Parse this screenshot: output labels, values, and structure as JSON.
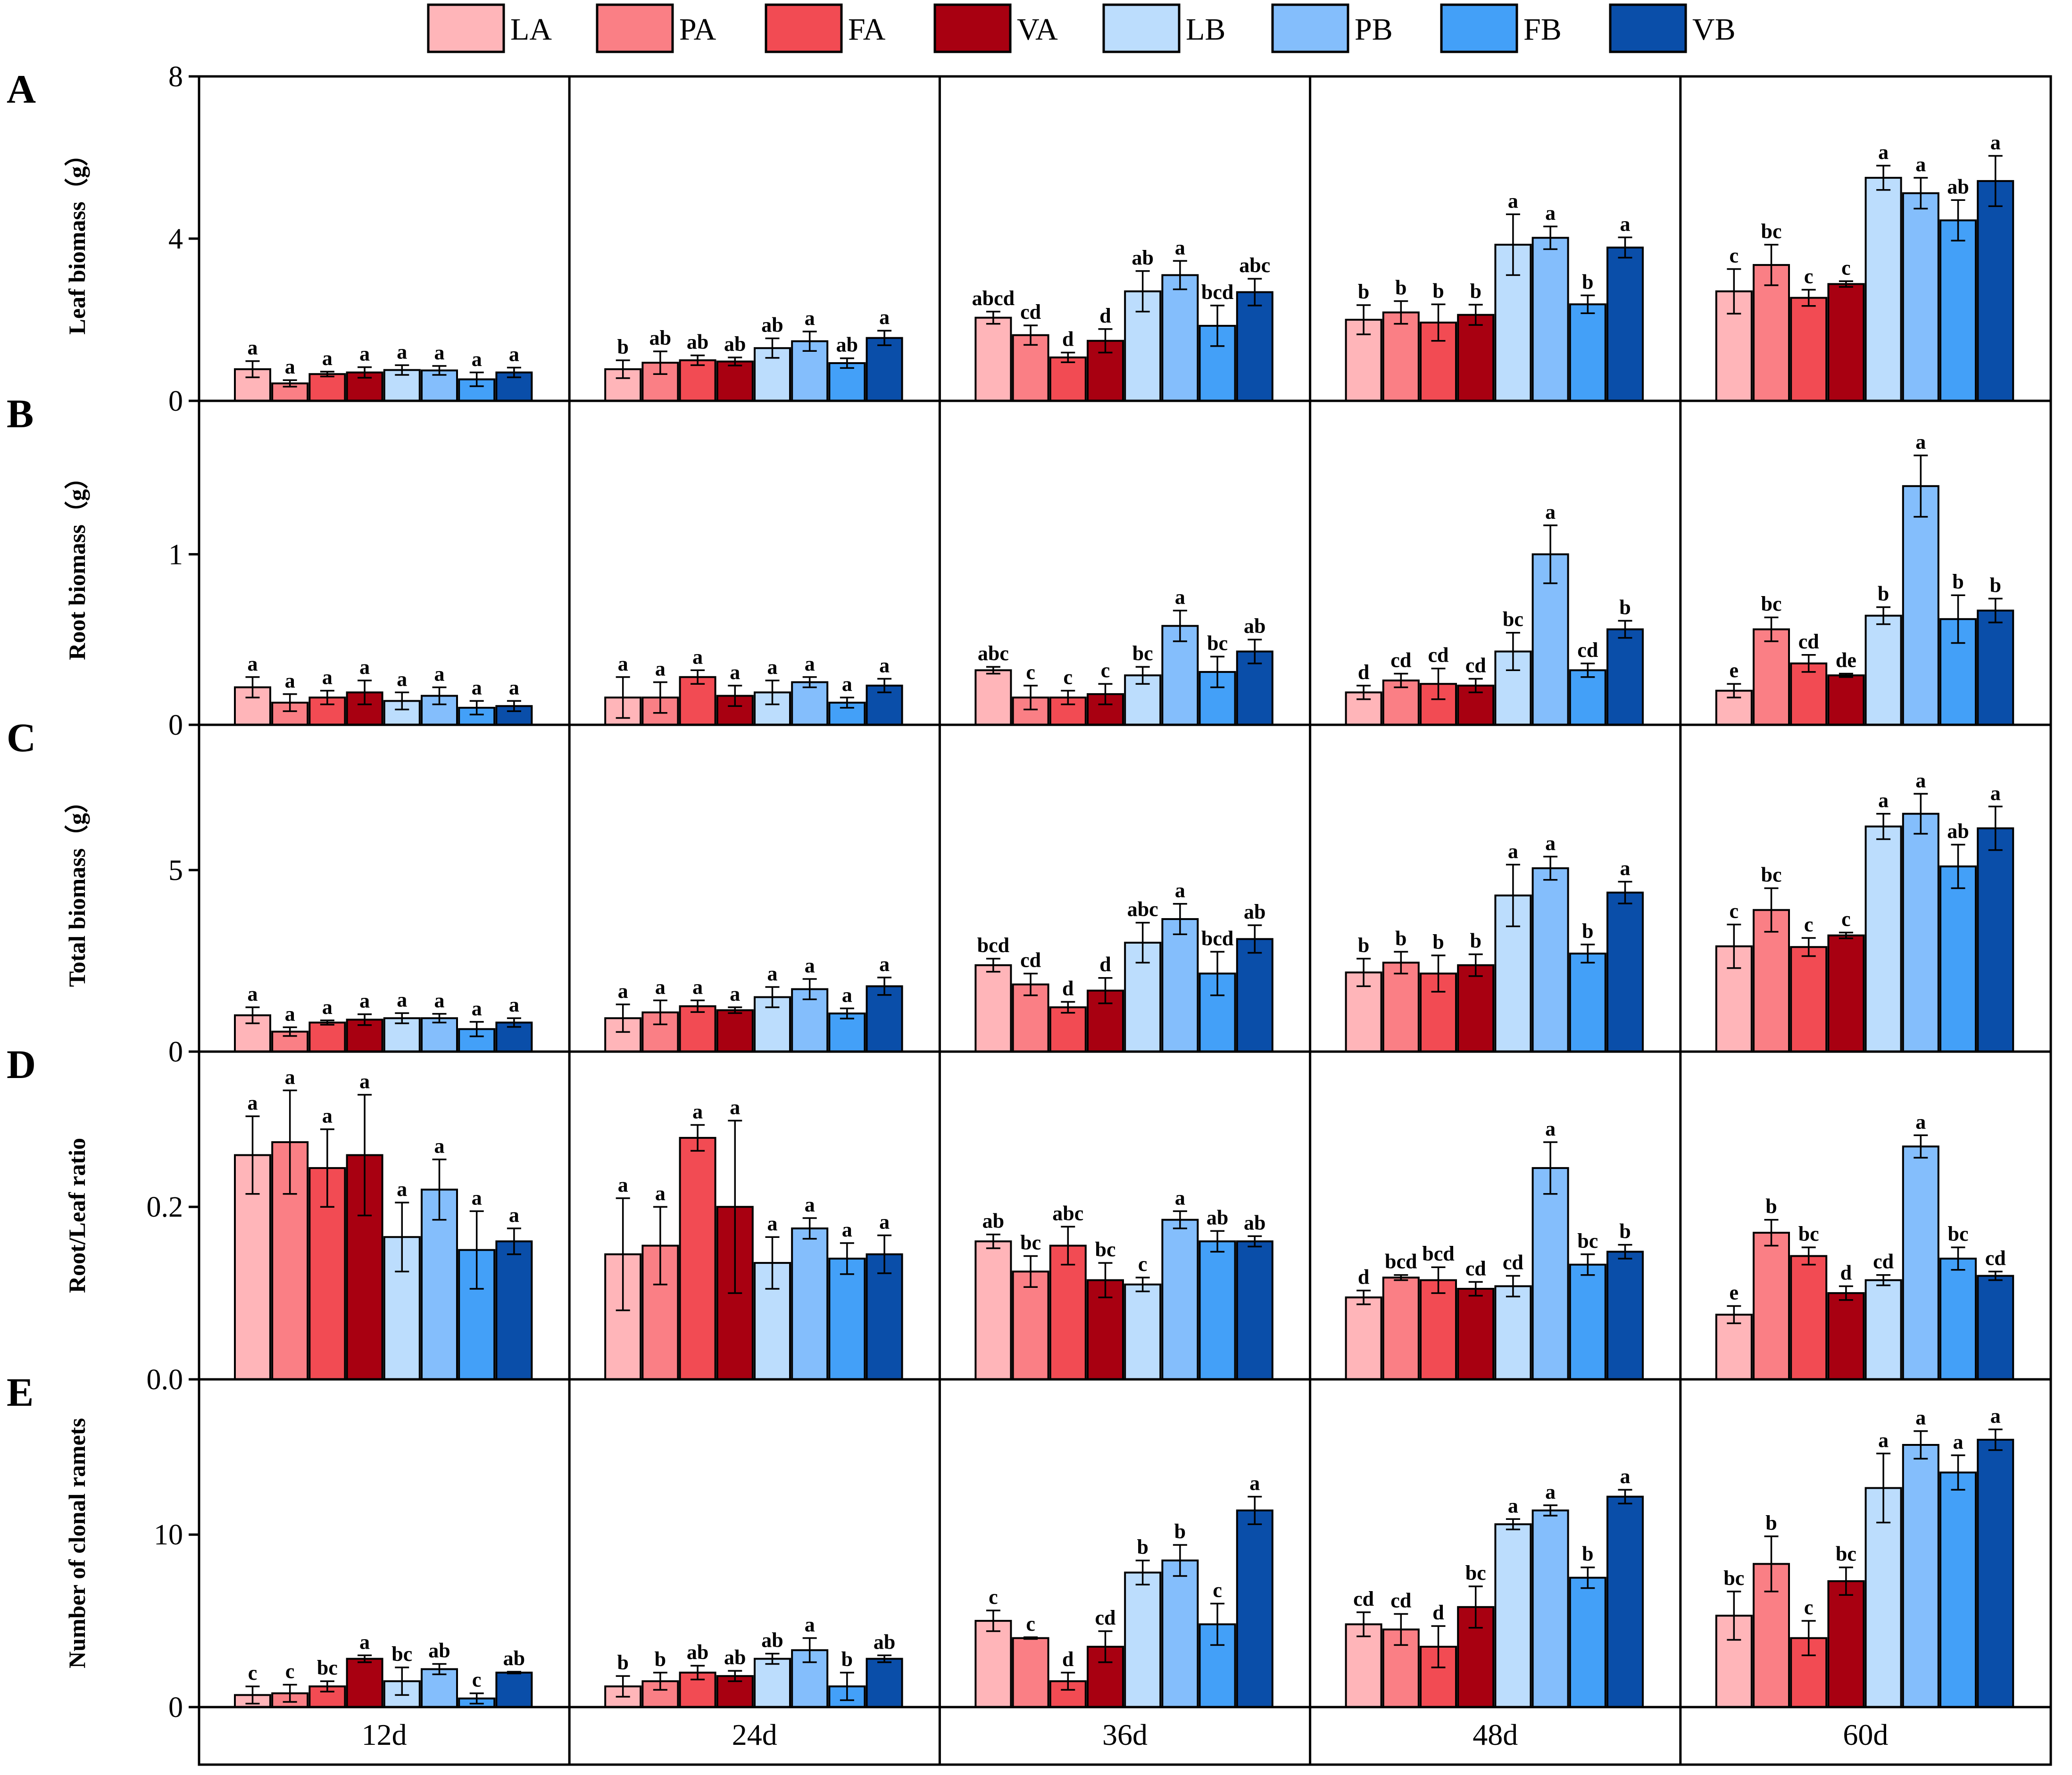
{
  "chart_data": {
    "type": "bar",
    "legend": [
      "LA",
      "PA",
      "FA",
      "VA",
      "LB",
      "PB",
      "FB",
      "VB"
    ],
    "legend_position": "top",
    "colors": {
      "LA": "#ffb5b9",
      "PA": "#fa7f85",
      "FA": "#f24b53",
      "VA": "#a80011",
      "LB": "#bcddfd",
      "PB": "#84befc",
      "FB": "#43a0f8",
      "VB": "#0a4ea9"
    },
    "groups": [
      "12d",
      "24d",
      "36d",
      "48d",
      "60d"
    ],
    "panels": [
      {
        "id": "A",
        "ylabel": "Leaf biomass（g）",
        "ylim": [
          0,
          8
        ],
        "yticks": [
          0,
          4,
          8
        ],
        "tick_labels": [
          "0",
          "4",
          "8"
        ],
        "values": [
          [
            0.78,
            0.43,
            0.66,
            0.7,
            0.76,
            0.75,
            0.53,
            0.7
          ],
          [
            0.78,
            0.94,
            1.0,
            0.97,
            1.3,
            1.47,
            0.93,
            1.55
          ],
          [
            2.05,
            1.62,
            1.07,
            1.48,
            2.7,
            3.1,
            1.85,
            2.68
          ],
          [
            2.0,
            2.18,
            1.93,
            2.12,
            3.85,
            4.02,
            2.38,
            3.78
          ],
          [
            2.7,
            3.35,
            2.54,
            2.88,
            5.5,
            5.12,
            4.45,
            5.42
          ]
        ],
        "errors": [
          [
            0.2,
            0.08,
            0.06,
            0.13,
            0.12,
            0.11,
            0.17,
            0.12
          ],
          [
            0.22,
            0.28,
            0.12,
            0.1,
            0.24,
            0.24,
            0.12,
            0.18
          ],
          [
            0.15,
            0.24,
            0.12,
            0.29,
            0.5,
            0.35,
            0.5,
            0.33
          ],
          [
            0.36,
            0.28,
            0.45,
            0.25,
            0.75,
            0.28,
            0.22,
            0.25
          ],
          [
            0.55,
            0.5,
            0.2,
            0.07,
            0.3,
            0.38,
            0.5,
            0.62
          ]
        ],
        "labels": [
          [
            "a",
            "a",
            "a",
            "a",
            "a",
            "a",
            "a",
            "a"
          ],
          [
            "b",
            "ab",
            "ab",
            "ab",
            "ab",
            "a",
            "ab",
            "a"
          ],
          [
            "abcd",
            "cd",
            "d",
            "d",
            "ab",
            "a",
            "bcd",
            "abc"
          ],
          [
            "b",
            "b",
            "b",
            "b",
            "a",
            "a",
            "b",
            "a"
          ],
          [
            "c",
            "bc",
            "c",
            "c",
            "a",
            "a",
            "ab",
            "a"
          ]
        ]
      },
      {
        "id": "B",
        "ylabel": "Root biomass（g）",
        "ylim": [
          0,
          1.9
        ],
        "yticks": [
          0,
          1
        ],
        "tick_labels": [
          "0",
          "1"
        ],
        "values": [
          [
            0.22,
            0.13,
            0.16,
            0.19,
            0.14,
            0.17,
            0.1,
            0.11
          ],
          [
            0.16,
            0.16,
            0.28,
            0.17,
            0.19,
            0.25,
            0.13,
            0.23
          ],
          [
            0.32,
            0.16,
            0.16,
            0.18,
            0.29,
            0.58,
            0.31,
            0.43
          ],
          [
            0.19,
            0.26,
            0.24,
            0.23,
            0.43,
            1.0,
            0.32,
            0.56
          ],
          [
            0.2,
            0.56,
            0.36,
            0.29,
            0.64,
            1.4,
            0.62,
            0.67
          ]
        ],
        "errors": [
          [
            0.06,
            0.05,
            0.04,
            0.07,
            0.05,
            0.05,
            0.04,
            0.03
          ],
          [
            0.12,
            0.09,
            0.04,
            0.06,
            0.07,
            0.03,
            0.03,
            0.04
          ],
          [
            0.02,
            0.07,
            0.04,
            0.06,
            0.05,
            0.09,
            0.09,
            0.07
          ],
          [
            0.04,
            0.04,
            0.09,
            0.04,
            0.11,
            0.17,
            0.04,
            0.05
          ],
          [
            0.04,
            0.07,
            0.05,
            0.01,
            0.05,
            0.18,
            0.14,
            0.07
          ]
        ],
        "labels": [
          [
            "a",
            "a",
            "a",
            "a",
            "a",
            "a",
            "a",
            "a"
          ],
          [
            "a",
            "a",
            "a",
            "a",
            "a",
            "a",
            "a",
            "a"
          ],
          [
            "abc",
            "c",
            "c",
            "c",
            "bc",
            "a",
            "bc",
            "ab"
          ],
          [
            "d",
            "cd",
            "cd",
            "cd",
            "bc",
            "a",
            "cd",
            "b"
          ],
          [
            "e",
            "bc",
            "cd",
            "de",
            "b",
            "a",
            "b",
            "b"
          ]
        ]
      },
      {
        "id": "C",
        "ylabel": "Total biomass（g）",
        "ylim": [
          0,
          9
        ],
        "yticks": [
          0,
          5
        ],
        "tick_labels": [
          "0",
          "5"
        ],
        "values": [
          [
            1.0,
            0.55,
            0.8,
            0.88,
            0.92,
            0.92,
            0.62,
            0.8
          ],
          [
            0.92,
            1.08,
            1.25,
            1.14,
            1.5,
            1.72,
            1.05,
            1.8
          ],
          [
            2.38,
            1.85,
            1.22,
            1.68,
            3.0,
            3.65,
            2.15,
            3.1
          ],
          [
            2.18,
            2.45,
            2.15,
            2.38,
            4.3,
            5.05,
            2.7,
            4.38
          ],
          [
            2.9,
            3.9,
            2.88,
            3.2,
            6.2,
            6.55,
            5.1,
            6.15
          ]
        ],
        "errors": [
          [
            0.22,
            0.12,
            0.06,
            0.15,
            0.14,
            0.12,
            0.2,
            0.12
          ],
          [
            0.38,
            0.33,
            0.16,
            0.08,
            0.28,
            0.28,
            0.14,
            0.24
          ],
          [
            0.18,
            0.3,
            0.15,
            0.35,
            0.55,
            0.42,
            0.6,
            0.38
          ],
          [
            0.38,
            0.3,
            0.5,
            0.3,
            0.85,
            0.32,
            0.25,
            0.3
          ],
          [
            0.6,
            0.6,
            0.25,
            0.08,
            0.35,
            0.55,
            0.6,
            0.6
          ]
        ],
        "labels": [
          [
            "a",
            "a",
            "a",
            "a",
            "a",
            "a",
            "a",
            "a"
          ],
          [
            "a",
            "a",
            "a",
            "a",
            "a",
            "a",
            "a",
            "a"
          ],
          [
            "bcd",
            "cd",
            "d",
            "d",
            "abc",
            "a",
            "bcd",
            "ab"
          ],
          [
            "b",
            "b",
            "b",
            "b",
            "a",
            "a",
            "b",
            "a"
          ],
          [
            "c",
            "bc",
            "c",
            "c",
            "a",
            "a",
            "ab",
            "a"
          ]
        ]
      },
      {
        "id": "D",
        "ylabel": "Root/Leaf ratio",
        "ylim": [
          0,
          0.38
        ],
        "yticks": [
          0.0,
          0.2
        ],
        "tick_labels": [
          "0.0",
          "0.2"
        ],
        "values": [
          [
            0.26,
            0.275,
            0.245,
            0.26,
            0.165,
            0.22,
            0.15,
            0.16
          ],
          [
            0.145,
            0.155,
            0.28,
            0.2,
            0.135,
            0.175,
            0.14,
            0.145
          ],
          [
            0.16,
            0.125,
            0.155,
            0.115,
            0.11,
            0.185,
            0.16,
            0.16
          ],
          [
            0.095,
            0.118,
            0.115,
            0.105,
            0.108,
            0.245,
            0.133,
            0.148
          ],
          [
            0.075,
            0.17,
            0.143,
            0.1,
            0.115,
            0.27,
            0.14,
            0.12
          ]
        ],
        "errors": [
          [
            0.045,
            0.06,
            0.045,
            0.07,
            0.04,
            0.035,
            0.045,
            0.015
          ],
          [
            0.065,
            0.045,
            0.015,
            0.1,
            0.03,
            0.012,
            0.018,
            0.022
          ],
          [
            0.008,
            0.018,
            0.022,
            0.02,
            0.008,
            0.01,
            0.012,
            0.006
          ],
          [
            0.008,
            0.003,
            0.015,
            0.008,
            0.012,
            0.03,
            0.012,
            0.008
          ],
          [
            0.01,
            0.015,
            0.01,
            0.008,
            0.006,
            0.013,
            0.013,
            0.005
          ]
        ],
        "labels": [
          [
            "a",
            "a",
            "a",
            "a",
            "a",
            "a",
            "a",
            "a"
          ],
          [
            "a",
            "a",
            "a",
            "a",
            "a",
            "a",
            "a",
            "a"
          ],
          [
            "ab",
            "bc",
            "abc",
            "bc",
            "c",
            "a",
            "ab",
            "ab"
          ],
          [
            "d",
            "bcd",
            "bcd",
            "cd",
            "cd",
            "a",
            "bc",
            "b"
          ],
          [
            "e",
            "b",
            "bc",
            "d",
            "cd",
            "a",
            "bc",
            "cd"
          ]
        ]
      },
      {
        "id": "E",
        "ylabel": "Number of clonal ramets",
        "ylim": [
          0,
          19
        ],
        "yticks": [
          0,
          10
        ],
        "tick_labels": [
          "0",
          "10"
        ],
        "values": [
          [
            0.7,
            0.8,
            1.2,
            2.8,
            1.5,
            2.2,
            0.5,
            2.0
          ],
          [
            1.2,
            1.5,
            2.0,
            1.8,
            2.8,
            3.3,
            1.2,
            2.8
          ],
          [
            5.0,
            4.0,
            1.5,
            3.5,
            7.8,
            8.5,
            4.8,
            11.4
          ],
          [
            4.8,
            4.5,
            3.5,
            5.8,
            10.6,
            11.4,
            7.5,
            12.2
          ],
          [
            5.3,
            8.3,
            4.0,
            7.3,
            12.7,
            15.2,
            13.6,
            15.5
          ]
        ],
        "errors": [
          [
            0.5,
            0.5,
            0.3,
            0.2,
            0.8,
            0.3,
            0.3,
            0.05
          ],
          [
            0.6,
            0.5,
            0.4,
            0.3,
            0.3,
            0.7,
            0.8,
            0.2
          ],
          [
            0.6,
            0.05,
            0.5,
            0.9,
            0.7,
            0.9,
            1.2,
            0.8
          ],
          [
            0.7,
            0.9,
            1.2,
            1.2,
            0.3,
            0.3,
            0.6,
            0.4
          ],
          [
            1.4,
            1.6,
            1.0,
            0.8,
            2.0,
            0.8,
            1.0,
            0.6
          ]
        ],
        "labels": [
          [
            "c",
            "c",
            "bc",
            "a",
            "bc",
            "ab",
            "c",
            "ab"
          ],
          [
            "b",
            "b",
            "ab",
            "ab",
            "ab",
            "a",
            "b",
            "ab"
          ],
          [
            "c",
            "c",
            "d",
            "cd",
            "b",
            "b",
            "c",
            "a"
          ],
          [
            "cd",
            "cd",
            "d",
            "bc",
            "a",
            "a",
            "b",
            "a"
          ],
          [
            "bc",
            "b",
            "c",
            "bc",
            "a",
            "a",
            "a",
            "a"
          ]
        ]
      }
    ]
  }
}
